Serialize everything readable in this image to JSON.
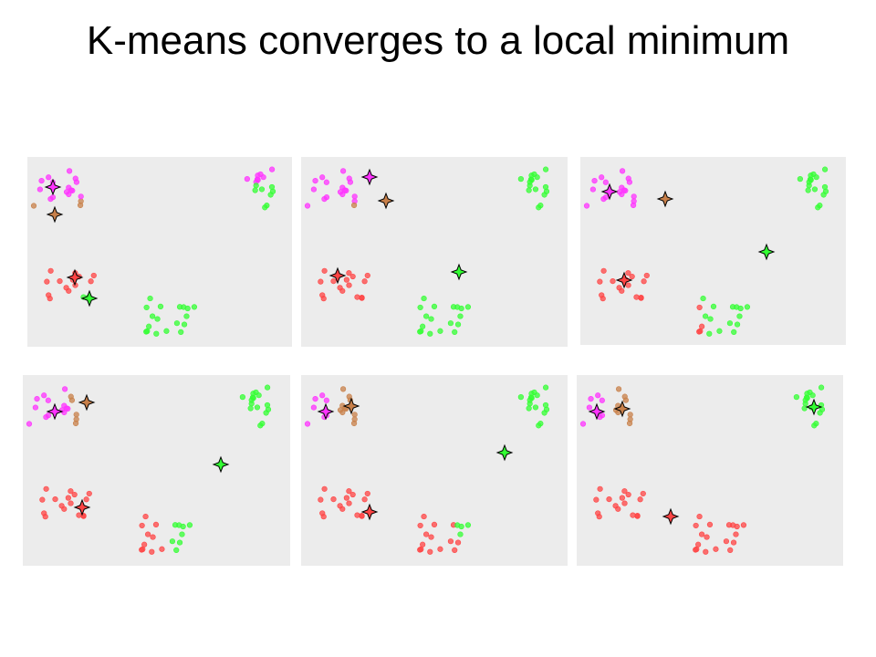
{
  "header": {
    "title": "K-means converges to a local minimum"
  }
}
